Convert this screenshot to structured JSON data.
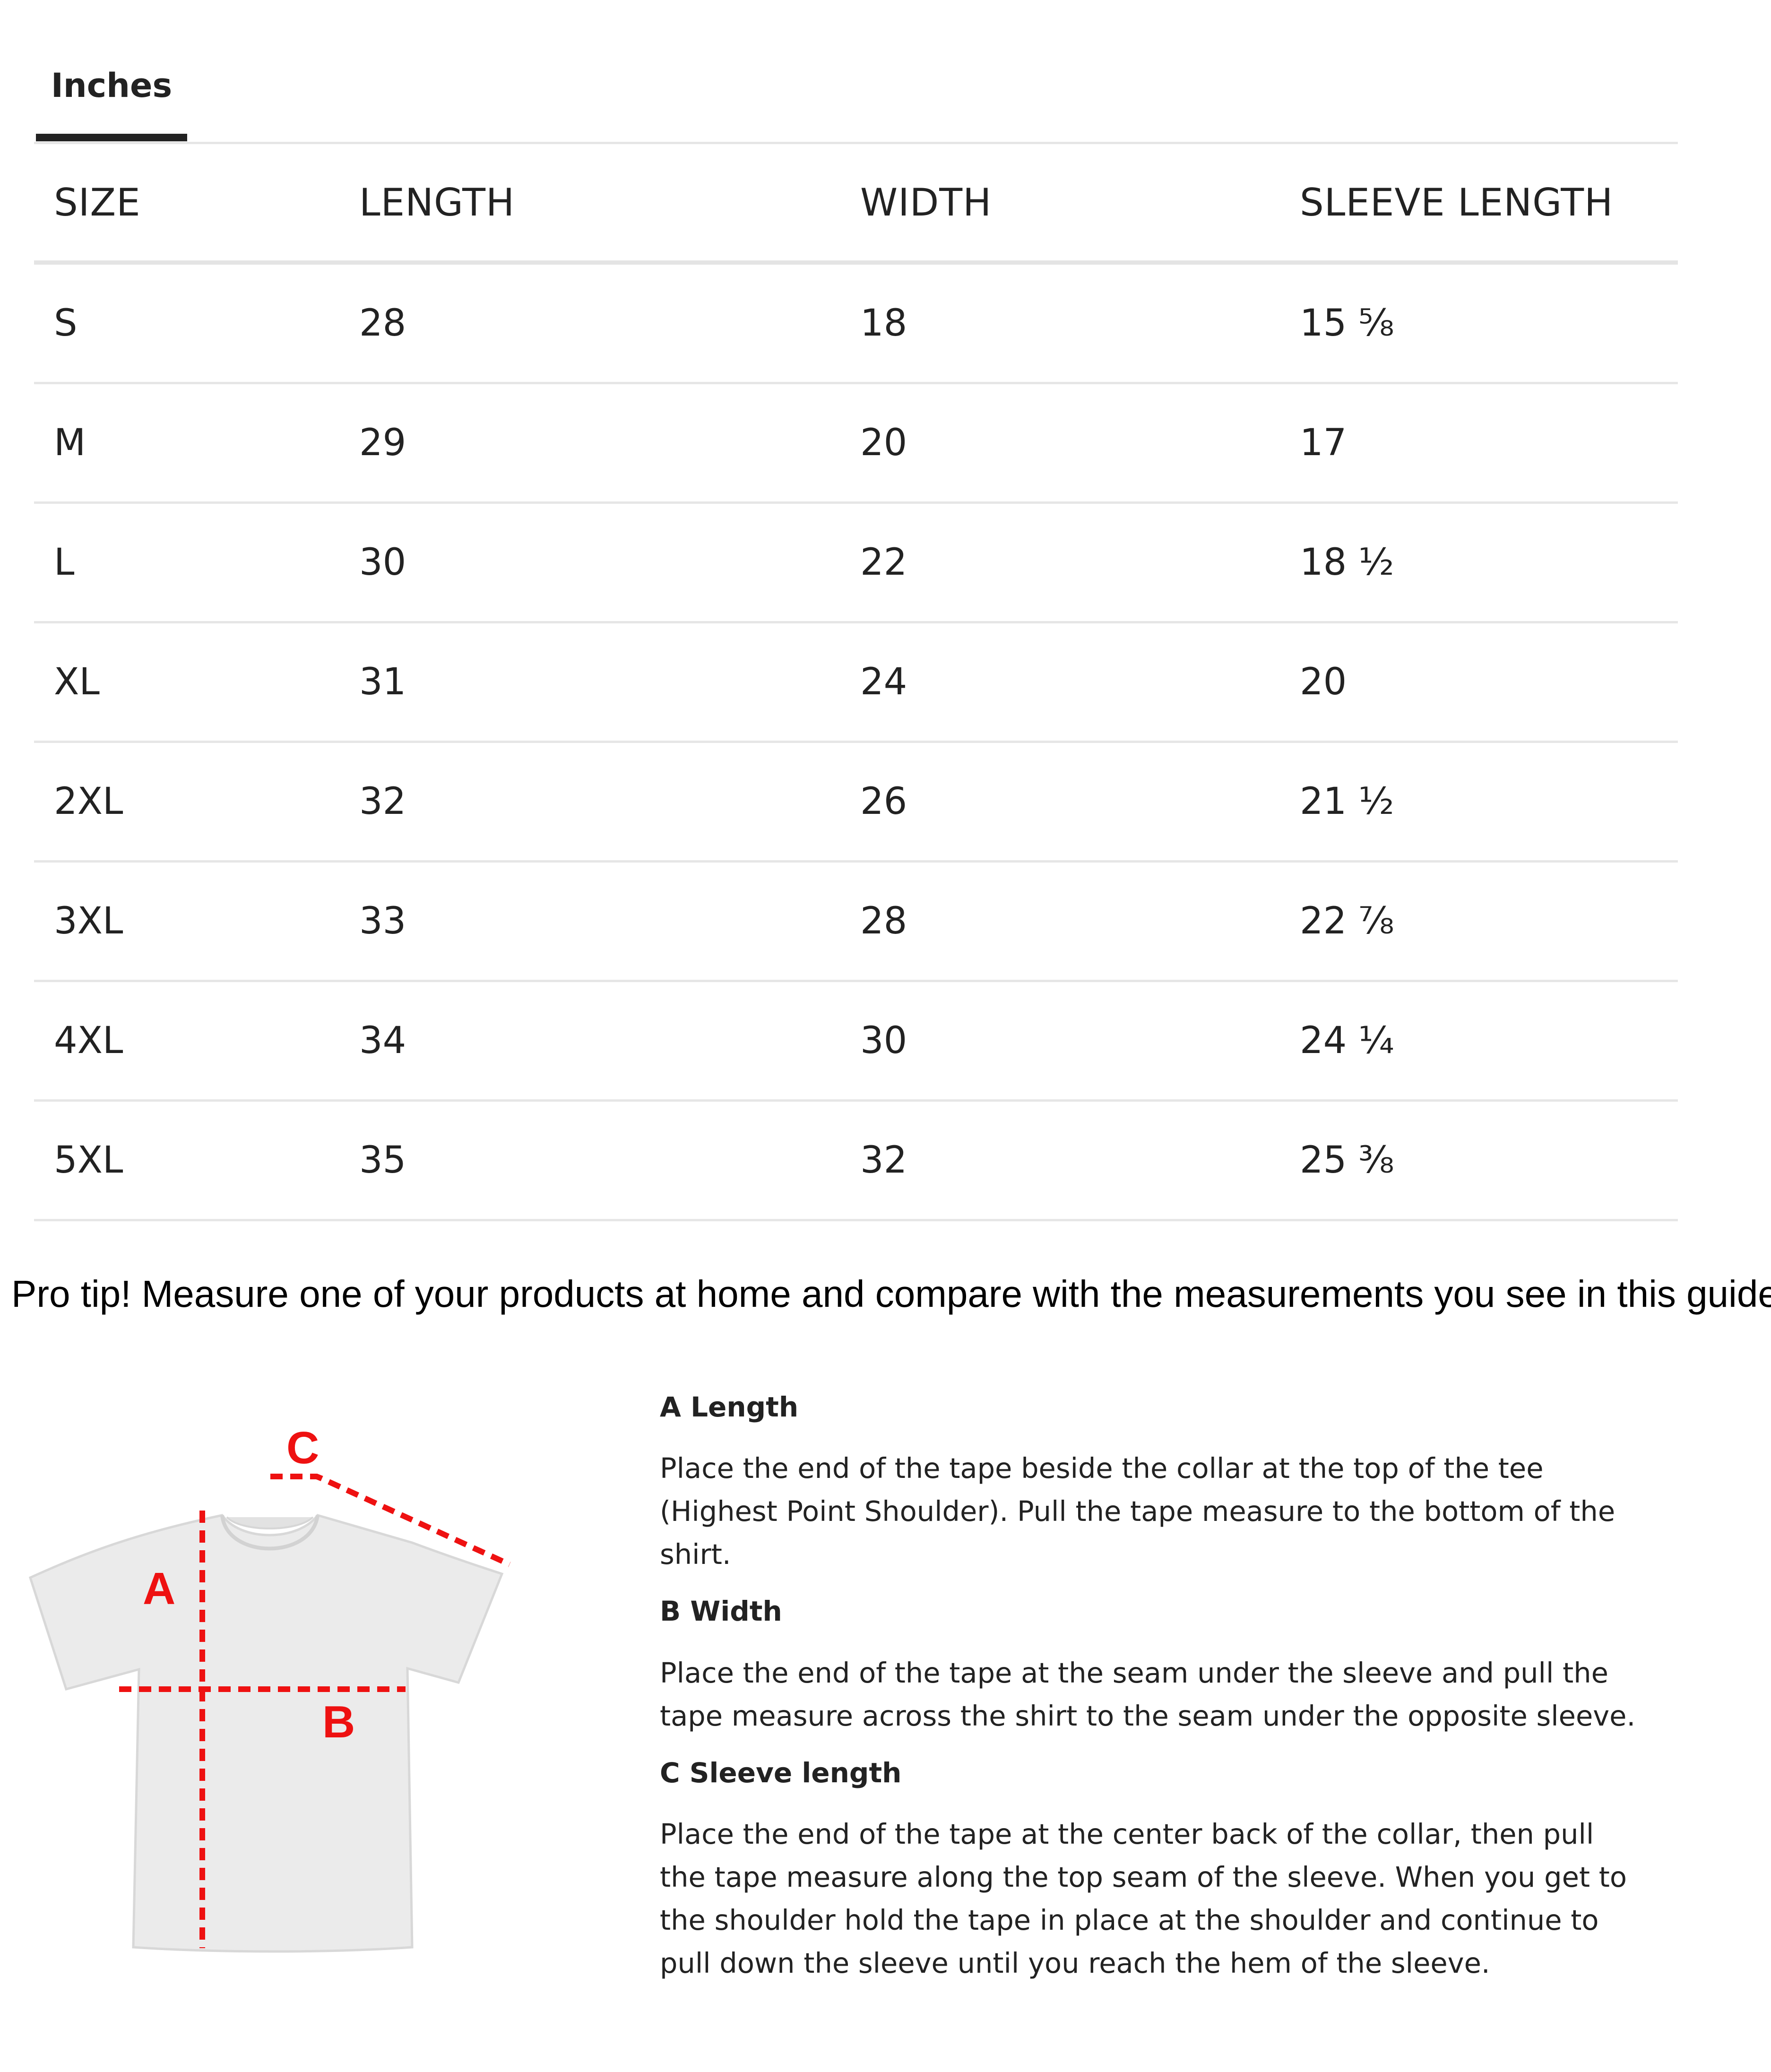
{
  "tabs": {
    "active_label": "Inches"
  },
  "table": {
    "headers": [
      "SIZE",
      "LENGTH",
      "WIDTH",
      "SLEEVE LENGTH"
    ],
    "rows": [
      [
        "S",
        "28",
        "18",
        "15 ⅝"
      ],
      [
        "M",
        "29",
        "20",
        "17"
      ],
      [
        "L",
        "30",
        "22",
        "18 ½"
      ],
      [
        "XL",
        "31",
        "24",
        "20"
      ],
      [
        "2XL",
        "32",
        "26",
        "21 ½"
      ],
      [
        "3XL",
        "33",
        "28",
        "22 ⅞"
      ],
      [
        "4XL",
        "34",
        "30",
        "24 ¼"
      ],
      [
        "5XL",
        "35",
        "32",
        "25 ⅜"
      ]
    ]
  },
  "pro_tip": "Pro tip! Measure one of your products at home and compare with the measurements you see in this guide.",
  "diagram": {
    "labels": {
      "a": "A",
      "b": "B",
      "c": "C"
    },
    "line_color": "#ee1111",
    "shirt_color": "#ebebeb"
  },
  "instructions": [
    {
      "heading": "A Length",
      "body": "Place the end of the tape beside the collar at the top of the tee (Highest Point Shoulder). Pull the tape measure to the bottom of the shirt."
    },
    {
      "heading": "B Width",
      "body": "Place the end of the tape at the seam under the sleeve and pull the tape measure across the shirt to the seam under the opposite sleeve."
    },
    {
      "heading": "C Sleeve length",
      "body": "Place the end of the tape at the center back of the collar, then pull the tape measure along the top seam of the sleeve. When you get to the shoulder hold the tape in place at the shoulder and continue to pull down the sleeve until you reach the hem of the sleeve."
    }
  ]
}
